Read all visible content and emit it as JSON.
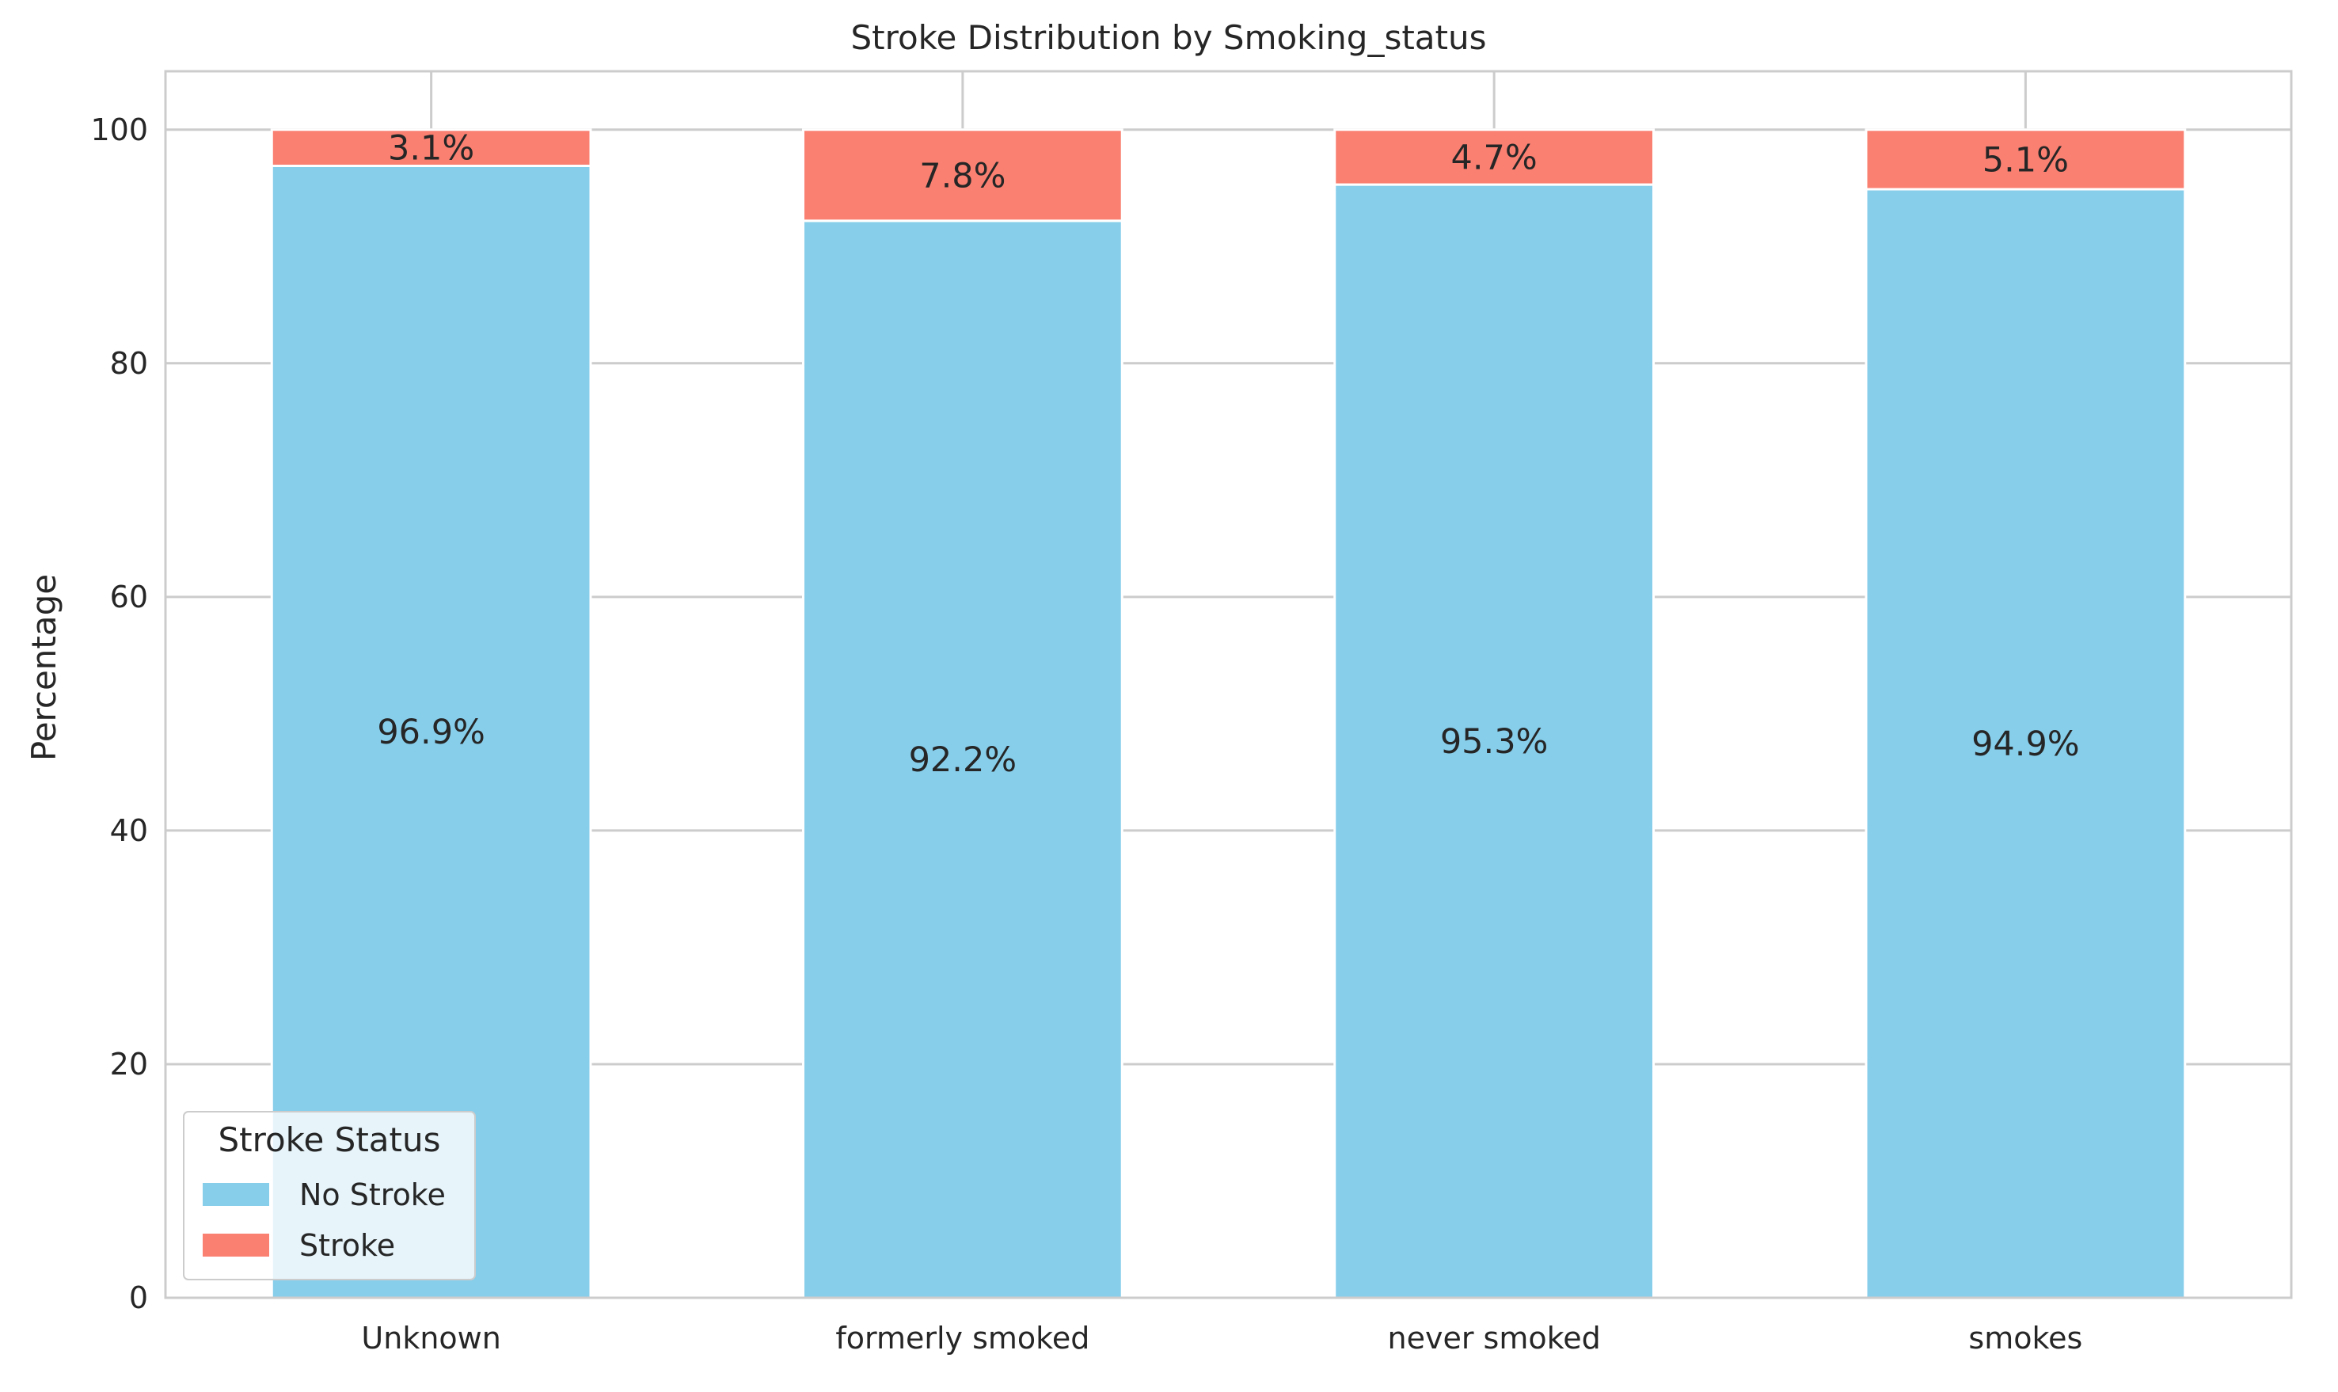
{
  "chart_data": {
    "type": "bar",
    "stacked": true,
    "title": "Stroke Distribution by Smoking_status",
    "xlabel": "",
    "ylabel": "Percentage",
    "ylim": [
      0,
      105
    ],
    "yticks": [
      0,
      20,
      40,
      60,
      80,
      100
    ],
    "grid": true,
    "categories": [
      "Unknown",
      "formerly smoked",
      "never smoked",
      "smokes"
    ],
    "series": [
      {
        "name": "No Stroke",
        "color": "#87CEEB",
        "values": [
          96.9,
          92.2,
          95.3,
          94.9
        ],
        "labels": [
          "96.9%",
          "92.2%",
          "95.3%",
          "94.9%"
        ]
      },
      {
        "name": "Stroke",
        "color": "#FA8072",
        "values": [
          3.1,
          7.8,
          4.7,
          5.1
        ],
        "labels": [
          "3.1%",
          "7.8%",
          "4.7%",
          "5.1%"
        ]
      }
    ],
    "legend": {
      "title": "Stroke Status",
      "position": "lower-left"
    },
    "colors": {
      "grid": "#cccccc",
      "axes_edge": "#cccccc",
      "text": "#262626",
      "legend_background": "#ffffff"
    }
  }
}
